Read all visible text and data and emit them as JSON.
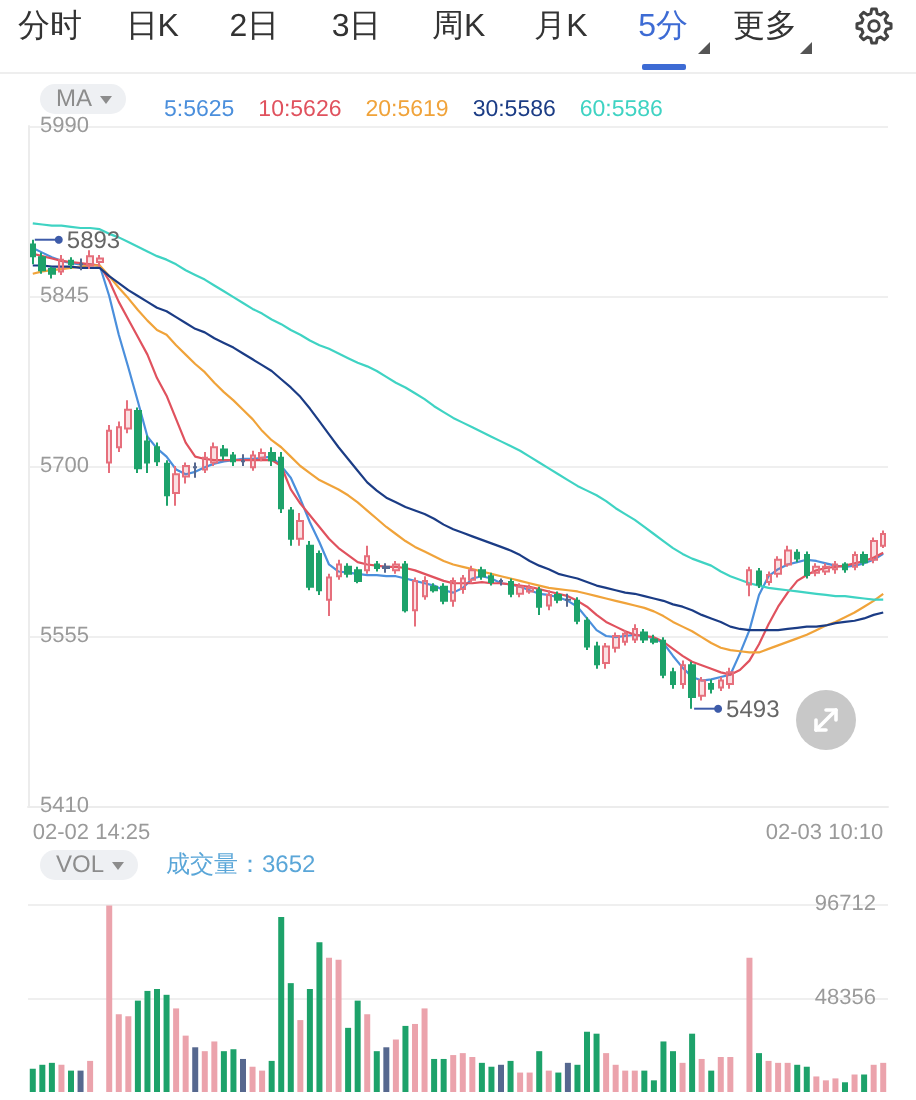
{
  "chart_data": [
    {
      "type": "other",
      "annotations": [
        "分时",
        "日K",
        "2日",
        "3日",
        "周K",
        "月K",
        "5分",
        "更多"
      ]
    },
    {
      "type": "candlestick",
      "legend_title": "MA",
      "legend": "top left",
      "grid": "y",
      "tick_labels": "y",
      "annotations": [
        "02-02 14:25",
        "02-03 10:10",
        "5893",
        "5493"
      ],
      "categories": [
        null,
        null,
        null,
        null,
        null,
        null,
        null,
        null,
        null,
        null,
        null,
        null,
        null,
        null,
        null,
        null,
        null,
        null,
        null,
        null,
        null,
        null,
        null,
        null,
        null,
        null,
        null,
        null,
        null,
        null,
        null,
        null,
        null,
        null,
        null,
        null,
        null,
        null,
        null,
        null,
        null,
        null,
        null,
        null,
        null,
        null,
        null,
        null,
        null,
        null,
        null,
        null,
        null,
        null,
        null,
        null,
        null,
        null,
        null,
        null,
        null,
        null,
        null,
        null,
        null,
        null,
        null,
        null,
        null,
        null,
        null,
        null,
        null,
        null,
        null,
        null,
        null,
        null,
        null,
        null,
        null,
        null,
        null,
        null,
        null,
        null,
        null,
        null,
        null,
        null
      ],
      "ylim": [
        5410,
        5990
      ],
      "yticks": [
        5410,
        5555,
        5700,
        5845,
        5990
      ],
      "series": [
        {
          "type": "candlestick",
          "ohlc": [
            [
              5889,
              5893,
              5872,
              5879
            ],
            [
              5878,
              5882,
              5864,
              5867
            ],
            [
              5868,
              5870,
              5860,
              5864
            ],
            [
              5866,
              5880,
              5863,
              5876
            ],
            [
              5875,
              5878,
              5868,
              5872
            ],
            [
              5872,
              5877,
              5867,
              5872
            ],
            [
              5871,
              5884,
              5868,
              5879
            ],
            [
              5874,
              5880,
              5870,
              5877
            ],
            [
              5703,
              5735,
              5694,
              5730
            ],
            [
              5716,
              5738,
              5712,
              5733
            ],
            [
              5732,
              5756,
              5728,
              5748
            ],
            [
              5747,
              5750,
              5694,
              5698
            ],
            [
              5721,
              5726,
              5694,
              5703
            ],
            [
              5716,
              5720,
              5700,
              5704
            ],
            [
              5702,
              5705,
              5666,
              5675
            ],
            [
              5677,
              5700,
              5666,
              5693
            ],
            [
              5691,
              5703,
              5685,
              5700
            ],
            [
              5699,
              5703,
              5690,
              5699
            ],
            [
              5697,
              5712,
              5694,
              5707
            ],
            [
              5703,
              5720,
              5700,
              5716
            ],
            [
              5714,
              5718,
              5705,
              5709
            ],
            [
              5709,
              5712,
              5700,
              5704
            ],
            [
              5704,
              5710,
              5700,
              5704
            ],
            [
              5699,
              5713,
              5696,
              5709
            ],
            [
              5707,
              5715,
              5704,
              5711
            ],
            [
              5711,
              5716,
              5700,
              5705
            ],
            [
              5707,
              5712,
              5660,
              5664
            ],
            [
              5662,
              5665,
              5632,
              5638
            ],
            [
              5638,
              5660,
              5632,
              5653
            ],
            [
              5632,
              5636,
              5594,
              5597
            ],
            [
              5625,
              5628,
              5590,
              5594
            ],
            [
              5586,
              5608,
              5572,
              5605
            ],
            [
              5606,
              5620,
              5603,
              5616
            ],
            [
              5614,
              5617,
              5605,
              5608
            ],
            [
              5611,
              5614,
              5600,
              5602
            ],
            [
              5611,
              5632,
              5608,
              5623
            ],
            [
              5616,
              5619,
              5610,
              5613
            ],
            [
              5613,
              5617,
              5609,
              5614
            ],
            [
              5611,
              5619,
              5608,
              5616
            ],
            [
              5616,
              5619,
              5575,
              5577
            ],
            [
              5577,
              5605,
              5563,
              5602
            ],
            [
              5589,
              5606,
              5586,
              5602
            ],
            [
              5597,
              5600,
              5592,
              5594
            ],
            [
              5597,
              5600,
              5582,
              5585
            ],
            [
              5585,
              5605,
              5580,
              5602
            ],
            [
              5595,
              5607,
              5591,
              5604
            ],
            [
              5603,
              5615,
              5600,
              5611
            ],
            [
              5611,
              5614,
              5603,
              5606
            ],
            [
              5606,
              5609,
              5598,
              5601
            ],
            [
              5602,
              5604,
              5598,
              5602
            ],
            [
              5601,
              5604,
              5588,
              5591
            ],
            [
              5591,
              5600,
              5588,
              5597
            ],
            [
              5593,
              5599,
              5591,
              5596
            ],
            [
              5594,
              5597,
              5573,
              5580
            ],
            [
              5581,
              5594,
              5577,
              5590
            ],
            [
              5590,
              5593,
              5583,
              5586
            ],
            [
              5586,
              5591,
              5580,
              5586
            ],
            [
              5585,
              5588,
              5565,
              5568
            ],
            [
              5568,
              5571,
              5543,
              5546
            ],
            [
              5546,
              5550,
              5527,
              5531
            ],
            [
              5532,
              5549,
              5527,
              5546
            ],
            [
              5545,
              5558,
              5541,
              5555
            ],
            [
              5550,
              5560,
              5547,
              5557
            ],
            [
              5552,
              5565,
              5549,
              5561
            ],
            [
              5558,
              5561,
              5549,
              5552
            ],
            [
              5552,
              5556,
              5548,
              5550
            ],
            [
              5551,
              5554,
              5519,
              5522
            ],
            [
              5524,
              5528,
              5510,
              5514
            ],
            [
              5514,
              5534,
              5510,
              5530
            ],
            [
              5530,
              5533,
              5493,
              5503
            ],
            [
              5504,
              5520,
              5500,
              5517
            ],
            [
              5514,
              5518,
              5506,
              5510
            ],
            [
              5511,
              5520,
              5508,
              5517
            ],
            [
              5514,
              5528,
              5510,
              5524
            ],
            null,
            [
              5599,
              5614,
              5589,
              5611
            ],
            [
              5610,
              5613,
              5596,
              5599
            ],
            [
              5601,
              5610,
              5598,
              5607
            ],
            [
              5608,
              5623,
              5605,
              5620
            ],
            [
              5616,
              5632,
              5614,
              5628
            ],
            [
              5626,
              5629,
              5618,
              5621
            ],
            [
              5624,
              5627,
              5604,
              5607
            ],
            [
              5609,
              5617,
              5606,
              5614
            ],
            [
              5610,
              5617,
              5607,
              5614
            ],
            [
              5612,
              5619,
              5608,
              5616
            ],
            [
              5616,
              5618,
              5609,
              5612
            ],
            [
              5614,
              5627,
              5611,
              5624
            ],
            [
              5624,
              5627,
              5615,
              5618
            ],
            [
              5620,
              5639,
              5617,
              5636
            ],
            [
              5632,
              5645,
              5630,
              5642
            ]
          ],
          "colors": [
            "#1da26a",
            "#1da26a",
            "#1da26a",
            "#e66f7c",
            "#1da26a",
            "#56688f",
            "#e66f7c",
            "#e66f7c",
            "#e66f7c",
            "#e66f7c",
            "#e66f7c",
            "#1da26a",
            "#1da26a",
            "#1da26a",
            "#1da26a",
            "#e66f7c",
            "#e66f7c",
            "#56688f",
            "#e66f7c",
            "#e66f7c",
            "#1da26a",
            "#1da26a",
            "#56688f",
            "#e66f7c",
            "#e66f7c",
            "#1da26a",
            "#1da26a",
            "#1da26a",
            "#e66f7c",
            "#1da26a",
            "#1da26a",
            "#e66f7c",
            "#e66f7c",
            "#1da26a",
            "#1da26a",
            "#e66f7c",
            "#1da26a",
            "#56688f",
            "#e66f7c",
            "#1da26a",
            "#e66f7c",
            "#e66f7c",
            "#1da26a",
            "#1da26a",
            "#e66f7c",
            "#e66f7c",
            "#e66f7c",
            "#1da26a",
            "#1da26a",
            "#56688f",
            "#1da26a",
            "#e66f7c",
            "#e66f7c",
            "#1da26a",
            "#e66f7c",
            "#1da26a",
            "#56688f",
            "#1da26a",
            "#1da26a",
            "#1da26a",
            "#e66f7c",
            "#e66f7c",
            "#e66f7c",
            "#e66f7c",
            "#1da26a",
            "#1da26a",
            "#1da26a",
            "#1da26a",
            "#e66f7c",
            "#1da26a",
            "#e66f7c",
            "#1da26a",
            "#e66f7c",
            "#e66f7c",
            null,
            "#e66f7c",
            "#1da26a",
            "#e66f7c",
            "#e66f7c",
            "#e66f7c",
            "#1da26a",
            "#1da26a",
            "#e66f7c",
            "#e66f7c",
            "#e66f7c",
            "#1da26a",
            "#e66f7c",
            "#1da26a",
            "#e66f7c",
            "#e66f7c"
          ]
        },
        {
          "type": "line",
          "name": "5:5625",
          "color": "#4b8fdc",
          "values": [
            5886,
            5882,
            5878,
            5875,
            5873,
            5872,
            5872,
            5871,
            5845,
            5812,
            5784,
            5755,
            5725,
            5715,
            5708,
            5697,
            5693,
            5695,
            5699,
            5702,
            5704,
            5705,
            5706,
            5706,
            5707,
            5708,
            5700,
            5690,
            5672,
            5652,
            5635,
            5616,
            5610,
            5609,
            5608,
            5607,
            5607,
            5606,
            5606,
            5604,
            5602,
            5600,
            5598,
            5594,
            5592,
            5596,
            5604,
            5606,
            5604,
            5600,
            5599,
            5597,
            5594,
            5591,
            5590,
            5588,
            5585,
            5580,
            5570,
            5560,
            5555,
            5554,
            5555,
            5556,
            5555,
            5553,
            5549,
            5538,
            5528,
            5520,
            5517,
            5518,
            5520,
            5522,
            5540,
            5560,
            5590,
            5606,
            5612,
            5616,
            5618,
            5620,
            5619,
            5617,
            5615,
            5614,
            5615,
            5617,
            5620,
            5625
          ]
        },
        {
          "type": "line",
          "name": "10:5626",
          "color": "#e0525e",
          "values": [
            5881,
            5879,
            5877,
            5875,
            5874,
            5873,
            5872,
            5871,
            5858,
            5840,
            5825,
            5810,
            5795,
            5775,
            5760,
            5740,
            5720,
            5708,
            5706,
            5705,
            5705,
            5705,
            5705,
            5705,
            5705,
            5705,
            5700,
            5680,
            5668,
            5658,
            5648,
            5638,
            5630,
            5624,
            5618,
            5616,
            5615,
            5614,
            5614,
            5613,
            5611,
            5608,
            5605,
            5602,
            5600,
            5600,
            5600,
            5601,
            5600,
            5600,
            5599,
            5598,
            5597,
            5595,
            5593,
            5591,
            5589,
            5585,
            5580,
            5573,
            5567,
            5563,
            5559,
            5556,
            5555,
            5554,
            5550,
            5544,
            5538,
            5533,
            5530,
            5527,
            5524,
            5522,
            5526,
            5534,
            5548,
            5565,
            5580,
            5592,
            5602,
            5607,
            5611,
            5613,
            5614,
            5615,
            5617,
            5619,
            5622,
            5626
          ]
        },
        {
          "type": "line",
          "name": "20:5619",
          "color": "#f0a33a",
          "values": [
            5864,
            5866,
            5867,
            5868,
            5869,
            5870,
            5871,
            5871,
            5862,
            5852,
            5843,
            5833,
            5824,
            5816,
            5812,
            5803,
            5795,
            5787,
            5780,
            5771,
            5763,
            5756,
            5748,
            5740,
            5730,
            5722,
            5716,
            5708,
            5700,
            5694,
            5688,
            5684,
            5680,
            5675,
            5669,
            5662,
            5655,
            5648,
            5642,
            5636,
            5631,
            5627,
            5623,
            5619,
            5616,
            5614,
            5612,
            5610,
            5608,
            5606,
            5604,
            5602,
            5600,
            5598,
            5596,
            5595,
            5594,
            5593,
            5591,
            5589,
            5587,
            5585,
            5583,
            5581,
            5579,
            5576,
            5572,
            5567,
            5563,
            5559,
            5554,
            5549,
            5545,
            5543,
            5542,
            5541,
            5541,
            5544,
            5547,
            5550,
            5553,
            5556,
            5560,
            5564,
            5567,
            5571,
            5575,
            5580,
            5585,
            5591
          ]
        },
        {
          "type": "line",
          "name": "30:5586",
          "color": "#1b3c85",
          "values": [
            5871,
            5871,
            5870,
            5870,
            5870,
            5869,
            5869,
            5869,
            5862,
            5856,
            5850,
            5845,
            5840,
            5835,
            5832,
            5827,
            5822,
            5817,
            5814,
            5809,
            5805,
            5801,
            5796,
            5791,
            5786,
            5781,
            5774,
            5767,
            5759,
            5749,
            5738,
            5727,
            5716,
            5706,
            5696,
            5686,
            5679,
            5673,
            5669,
            5665,
            5662,
            5659,
            5655,
            5650,
            5646,
            5643,
            5640,
            5637,
            5634,
            5631,
            5628,
            5624,
            5619,
            5615,
            5612,
            5608,
            5606,
            5604,
            5601,
            5598,
            5596,
            5594,
            5592,
            5591,
            5589,
            5587,
            5585,
            5582,
            5580,
            5577,
            5573,
            5570,
            5567,
            5563,
            5561,
            5560,
            5560,
            5560,
            5560,
            5561,
            5562,
            5563,
            5563,
            5564,
            5566,
            5567,
            5568,
            5570,
            5573,
            5575
          ]
        },
        {
          "type": "line",
          "name": "60:5586",
          "color": "#3fd3c3",
          "values": [
            5907,
            5906,
            5905,
            5905,
            5904,
            5903,
            5903,
            5902,
            5898,
            5895,
            5891,
            5887,
            5883,
            5879,
            5876,
            5872,
            5867,
            5863,
            5859,
            5854,
            5849,
            5844,
            5839,
            5834,
            5830,
            5825,
            5821,
            5816,
            5812,
            5807,
            5803,
            5800,
            5796,
            5792,
            5788,
            5785,
            5781,
            5776,
            5771,
            5767,
            5762,
            5757,
            5751,
            5746,
            5741,
            5737,
            5733,
            5729,
            5725,
            5721,
            5717,
            5713,
            5708,
            5703,
            5698,
            5693,
            5688,
            5683,
            5679,
            5675,
            5670,
            5664,
            5659,
            5654,
            5648,
            5642,
            5636,
            5630,
            5625,
            5621,
            5618,
            5615,
            5610,
            5606,
            5603,
            5600,
            5598,
            5596,
            5595,
            5594,
            5593,
            5592,
            5591,
            5590,
            5589,
            5589,
            5588,
            5587,
            5586,
            5586
          ]
        }
      ]
    },
    {
      "type": "bar",
      "title": "VOL",
      "annotations": [
        "成交量：3652"
      ],
      "tick_labels": "y",
      "grid": "y",
      "categories": [
        null,
        null,
        null,
        null,
        null,
        null,
        null,
        null,
        null,
        null,
        null,
        null,
        null,
        null,
        null,
        null,
        null,
        null,
        null,
        null,
        null,
        null,
        null,
        null,
        null,
        null,
        null,
        null,
        null,
        null,
        null,
        null,
        null,
        null,
        null,
        null,
        null,
        null,
        null,
        null,
        null,
        null,
        null,
        null,
        null,
        null,
        null,
        null,
        null,
        null,
        null,
        null,
        null,
        null,
        null,
        null,
        null,
        null,
        null,
        null,
        null,
        null,
        null,
        null,
        null,
        null,
        null,
        null,
        null,
        null,
        null,
        null,
        null,
        null,
        null,
        null,
        null,
        null,
        null,
        null,
        null,
        null,
        null,
        null,
        null,
        null,
        null,
        null,
        null,
        null
      ],
      "ylim": [
        0,
        96712
      ],
      "yticks": [
        48356,
        96712
      ],
      "values": [
        12000,
        14000,
        15000,
        14000,
        11000,
        11000,
        16000,
        null,
        96000,
        40000,
        39000,
        47000,
        52000,
        53000,
        50000,
        43000,
        29000,
        23000,
        21000,
        26000,
        21000,
        22000,
        17000,
        13000,
        11000,
        16000,
        90000,
        56000,
        37000,
        53000,
        77000,
        69000,
        68000,
        33000,
        47000,
        40000,
        21000,
        23000,
        27000,
        34000,
        35000,
        43000,
        17000,
        17000,
        19000,
        20000,
        18000,
        15000,
        13000,
        14000,
        16000,
        10000,
        10000,
        21000,
        11000,
        10000,
        15000,
        14000,
        31000,
        30000,
        20000,
        14000,
        11000,
        11000,
        11000,
        6000,
        26000,
        21000,
        15000,
        30000,
        17000,
        11000,
        18000,
        18000,
        null,
        69000,
        20000,
        16000,
        15000,
        15000,
        14000,
        13000,
        8000,
        6000,
        7000,
        5000,
        9000,
        9000,
        14000,
        15000
      ],
      "colors": [
        "#1da26a",
        "#1da26a",
        "#1da26a",
        "#eba3ac",
        "#1da26a",
        "#56688f",
        "#eba3ac",
        null,
        "#eba3ac",
        "#eba3ac",
        "#eba3ac",
        "#1da26a",
        "#1da26a",
        "#1da26a",
        "#1da26a",
        "#eba3ac",
        "#eba3ac",
        "#56688f",
        "#eba3ac",
        "#eba3ac",
        "#1da26a",
        "#1da26a",
        "#56688f",
        "#eba3ac",
        "#eba3ac",
        "#1da26a",
        "#1da26a",
        "#1da26a",
        "#eba3ac",
        "#1da26a",
        "#1da26a",
        "#eba3ac",
        "#eba3ac",
        "#1da26a",
        "#1da26a",
        "#eba3ac",
        "#1da26a",
        "#56688f",
        "#eba3ac",
        "#1da26a",
        "#eba3ac",
        "#eba3ac",
        "#1da26a",
        "#1da26a",
        "#eba3ac",
        "#eba3ac",
        "#eba3ac",
        "#1da26a",
        "#1da26a",
        "#56688f",
        "#1da26a",
        "#eba3ac",
        "#eba3ac",
        "#1da26a",
        "#eba3ac",
        "#1da26a",
        "#56688f",
        "#1da26a",
        "#1da26a",
        "#1da26a",
        "#eba3ac",
        "#eba3ac",
        "#eba3ac",
        "#eba3ac",
        "#1da26a",
        "#1da26a",
        "#1da26a",
        "#1da26a",
        "#eba3ac",
        "#1da26a",
        "#eba3ac",
        "#1da26a",
        "#eba3ac",
        "#eba3ac",
        null,
        "#eba3ac",
        "#1da26a",
        "#eba3ac",
        "#eba3ac",
        "#eba3ac",
        "#1da26a",
        "#1da26a",
        "#eba3ac",
        "#eba3ac",
        "#eba3ac",
        "#1da26a",
        "#eba3ac",
        "#1da26a",
        "#eba3ac",
        "#eba3ac"
      ]
    }
  ]
}
